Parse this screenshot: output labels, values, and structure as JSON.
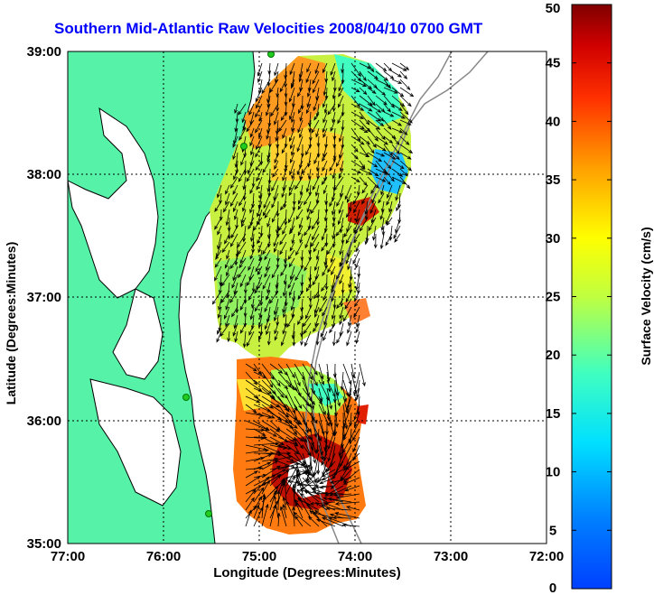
{
  "title": "Southern Mid-Atlantic Raw Velocities 2008/04/10 0700 GMT",
  "xlabel": "Longitude (Degrees:Minutes)",
  "ylabel": "Latitude (Degrees:Minutes)",
  "colorbar_label": "Surface Velocity (cm/s)",
  "x_ticks": [
    "77:00",
    "76:00",
    "75:00",
    "74:00",
    "73:00",
    "72:00"
  ],
  "y_ticks": [
    "35:00",
    "36:00",
    "37:00",
    "38:00",
    "39:00"
  ],
  "colorbar_ticks": [
    "0",
    "5",
    "10",
    "15",
    "20",
    "25",
    "30",
    "35",
    "40",
    "45",
    "50"
  ],
  "colors": {
    "land": "#55f2a8",
    "coastline": "#000000",
    "grid": "#000000",
    "title": "#0000ff",
    "bathymetry": "#888888"
  },
  "chart_data": {
    "type": "heatmap",
    "xlim": [
      -77,
      -72
    ],
    "ylim": [
      35,
      39
    ],
    "clim": [
      0,
      50
    ],
    "colormap": "jet",
    "grid": true,
    "legend": "colorbar-right"
  }
}
